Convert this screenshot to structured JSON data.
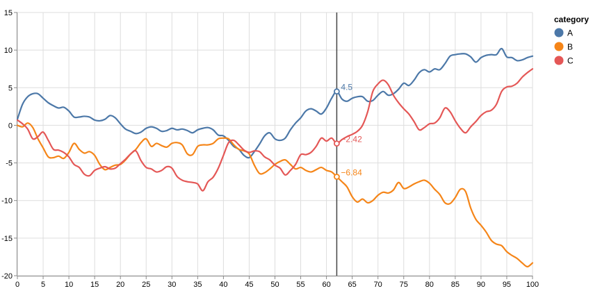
{
  "chart_data": {
    "type": "line",
    "legend": {
      "title": "category",
      "position": "right-top"
    },
    "xlim": [
      0,
      100
    ],
    "ylim": [
      -20,
      15
    ],
    "x_ticks": [
      0,
      5,
      10,
      15,
      20,
      25,
      30,
      35,
      40,
      45,
      50,
      55,
      60,
      65,
      70,
      75,
      80,
      85,
      90,
      95,
      100
    ],
    "y_ticks": [
      -20,
      -15,
      -10,
      -5,
      0,
      5,
      10,
      15
    ],
    "grid": true,
    "rule_x": 62,
    "series": [
      {
        "name": "A",
        "color": "#4c78a8",
        "points": [
          [
            0,
            0.8
          ],
          [
            1,
            2.8
          ],
          [
            2,
            3.8
          ],
          [
            3,
            4.2
          ],
          [
            4,
            4.2
          ],
          [
            5,
            3.6
          ],
          [
            6,
            3.0
          ],
          [
            7,
            2.6
          ],
          [
            8,
            2.3
          ],
          [
            9,
            2.4
          ],
          [
            10,
            1.9
          ],
          [
            11,
            1.1
          ],
          [
            12,
            1.1
          ],
          [
            13,
            1.2
          ],
          [
            14,
            1.1
          ],
          [
            15,
            0.7
          ],
          [
            16,
            0.6
          ],
          [
            17,
            0.8
          ],
          [
            18,
            1.3
          ],
          [
            19,
            1.0
          ],
          [
            20,
            0.2
          ],
          [
            21,
            -0.5
          ],
          [
            22,
            -0.8
          ],
          [
            23,
            -1.1
          ],
          [
            24,
            -0.9
          ],
          [
            25,
            -0.4
          ],
          [
            26,
            -0.2
          ],
          [
            27,
            -0.4
          ],
          [
            28,
            -0.8
          ],
          [
            29,
            -0.7
          ],
          [
            30,
            -0.4
          ],
          [
            31,
            -0.6
          ],
          [
            32,
            -0.5
          ],
          [
            33,
            -0.7
          ],
          [
            34,
            -1.0
          ],
          [
            35,
            -0.6
          ],
          [
            36,
            -0.4
          ],
          [
            37,
            -0.3
          ],
          [
            38,
            -0.6
          ],
          [
            39,
            -1.3
          ],
          [
            40,
            -1.4
          ],
          [
            41,
            -2.0
          ],
          [
            42,
            -2.8
          ],
          [
            43,
            -3.2
          ],
          [
            44,
            -4.0
          ],
          [
            45,
            -4.3
          ],
          [
            46,
            -3.5
          ],
          [
            47,
            -2.5
          ],
          [
            48,
            -1.4
          ],
          [
            49,
            -1.0
          ],
          [
            50,
            -1.8
          ],
          [
            51,
            -2.0
          ],
          [
            52,
            -1.7
          ],
          [
            53,
            -0.6
          ],
          [
            54,
            0.3
          ],
          [
            55,
            1.0
          ],
          [
            56,
            1.9
          ],
          [
            57,
            2.2
          ],
          [
            58,
            1.9
          ],
          [
            59,
            1.5
          ],
          [
            60,
            2.3
          ],
          [
            61,
            3.6
          ],
          [
            62,
            4.5
          ],
          [
            63,
            3.5
          ],
          [
            64,
            3.2
          ],
          [
            65,
            3.6
          ],
          [
            66,
            3.8
          ],
          [
            67,
            3.8
          ],
          [
            68,
            3.2
          ],
          [
            69,
            3.3
          ],
          [
            70,
            4.0
          ],
          [
            71,
            4.5
          ],
          [
            72,
            4.0
          ],
          [
            73,
            4.2
          ],
          [
            74,
            4.8
          ],
          [
            75,
            5.6
          ],
          [
            76,
            5.3
          ],
          [
            77,
            6.0
          ],
          [
            78,
            7.0
          ],
          [
            79,
            7.4
          ],
          [
            80,
            7.1
          ],
          [
            81,
            7.5
          ],
          [
            82,
            7.4
          ],
          [
            83,
            8.2
          ],
          [
            84,
            9.2
          ],
          [
            85,
            9.4
          ],
          [
            86,
            9.5
          ],
          [
            87,
            9.5
          ],
          [
            88,
            9.1
          ],
          [
            89,
            8.4
          ],
          [
            90,
            9.0
          ],
          [
            91,
            9.3
          ],
          [
            92,
            9.4
          ],
          [
            93,
            9.4
          ],
          [
            94,
            10.2
          ],
          [
            95,
            9.1
          ],
          [
            96,
            9.0
          ],
          [
            97,
            8.6
          ],
          [
            98,
            8.7
          ],
          [
            99,
            9.0
          ],
          [
            100,
            9.2
          ]
        ]
      },
      {
        "name": "B",
        "color": "#f58518",
        "points": [
          [
            0,
            0.0
          ],
          [
            1,
            -0.2
          ],
          [
            2,
            0.3
          ],
          [
            3,
            -0.3
          ],
          [
            4,
            -1.8
          ],
          [
            5,
            -3.0
          ],
          [
            6,
            -4.2
          ],
          [
            7,
            -4.3
          ],
          [
            8,
            -4.1
          ],
          [
            9,
            -4.4
          ],
          [
            10,
            -3.6
          ],
          [
            11,
            -2.4
          ],
          [
            12,
            -3.2
          ],
          [
            13,
            -3.7
          ],
          [
            14,
            -3.5
          ],
          [
            15,
            -4.0
          ],
          [
            16,
            -5.2
          ],
          [
            17,
            -5.9
          ],
          [
            18,
            -5.6
          ],
          [
            19,
            -5.3
          ],
          [
            20,
            -5.2
          ],
          [
            21,
            -4.6
          ],
          [
            22,
            -3.8
          ],
          [
            23,
            -3.2
          ],
          [
            24,
            -2.3
          ],
          [
            25,
            -1.8
          ],
          [
            26,
            -2.8
          ],
          [
            27,
            -2.4
          ],
          [
            28,
            -2.7
          ],
          [
            29,
            -2.9
          ],
          [
            30,
            -2.4
          ],
          [
            31,
            -2.3
          ],
          [
            32,
            -2.6
          ],
          [
            33,
            -3.8
          ],
          [
            34,
            -3.9
          ],
          [
            35,
            -2.8
          ],
          [
            36,
            -2.6
          ],
          [
            37,
            -2.6
          ],
          [
            38,
            -2.4
          ],
          [
            39,
            -1.8
          ],
          [
            40,
            -1.7
          ],
          [
            41,
            -1.8
          ],
          [
            42,
            -2.6
          ],
          [
            43,
            -3.2
          ],
          [
            44,
            -3.4
          ],
          [
            45,
            -3.8
          ],
          [
            46,
            -5.3
          ],
          [
            47,
            -6.4
          ],
          [
            48,
            -6.3
          ],
          [
            49,
            -5.8
          ],
          [
            50,
            -5.2
          ],
          [
            51,
            -4.8
          ],
          [
            52,
            -4.6
          ],
          [
            53,
            -5.2
          ],
          [
            54,
            -5.8
          ],
          [
            55,
            -5.6
          ],
          [
            56,
            -6.0
          ],
          [
            57,
            -6.2
          ],
          [
            58,
            -5.9
          ],
          [
            59,
            -5.6
          ],
          [
            60,
            -6.0
          ],
          [
            61,
            -6.2
          ],
          [
            62,
            -6.84
          ],
          [
            63,
            -7.5
          ],
          [
            64,
            -8.2
          ],
          [
            65,
            -9.5
          ],
          [
            66,
            -10.2
          ],
          [
            67,
            -9.8
          ],
          [
            68,
            -10.3
          ],
          [
            69,
            -10.0
          ],
          [
            70,
            -9.3
          ],
          [
            71,
            -8.9
          ],
          [
            72,
            -9.0
          ],
          [
            73,
            -8.6
          ],
          [
            74,
            -7.6
          ],
          [
            75,
            -8.4
          ],
          [
            76,
            -8.2
          ],
          [
            77,
            -7.8
          ],
          [
            78,
            -7.5
          ],
          [
            79,
            -7.3
          ],
          [
            80,
            -7.7
          ],
          [
            81,
            -8.5
          ],
          [
            82,
            -9.2
          ],
          [
            83,
            -10.3
          ],
          [
            84,
            -10.4
          ],
          [
            85,
            -9.6
          ],
          [
            86,
            -8.5
          ],
          [
            87,
            -8.8
          ],
          [
            88,
            -11.0
          ],
          [
            89,
            -12.5
          ],
          [
            90,
            -13.3
          ],
          [
            91,
            -14.2
          ],
          [
            92,
            -15.3
          ],
          [
            93,
            -15.8
          ],
          [
            94,
            -16.0
          ],
          [
            95,
            -16.8
          ],
          [
            96,
            -17.3
          ],
          [
            97,
            -17.7
          ],
          [
            98,
            -18.3
          ],
          [
            99,
            -18.8
          ],
          [
            100,
            -18.3
          ]
        ]
      },
      {
        "name": "C",
        "color": "#e45756",
        "points": [
          [
            0,
            0.7
          ],
          [
            1,
            0.2
          ],
          [
            2,
            -0.5
          ],
          [
            3,
            -1.8
          ],
          [
            4,
            -1.5
          ],
          [
            5,
            -0.9
          ],
          [
            6,
            -2.0
          ],
          [
            7,
            -3.2
          ],
          [
            8,
            -3.3
          ],
          [
            9,
            -3.6
          ],
          [
            10,
            -4.2
          ],
          [
            11,
            -5.2
          ],
          [
            12,
            -5.6
          ],
          [
            13,
            -6.5
          ],
          [
            14,
            -6.7
          ],
          [
            15,
            -6.0
          ],
          [
            16,
            -5.7
          ],
          [
            17,
            -5.5
          ],
          [
            18,
            -5.8
          ],
          [
            19,
            -5.7
          ],
          [
            20,
            -5.1
          ],
          [
            21,
            -4.5
          ],
          [
            22,
            -3.8
          ],
          [
            23,
            -3.4
          ],
          [
            24,
            -4.7
          ],
          [
            25,
            -5.6
          ],
          [
            26,
            -5.8
          ],
          [
            27,
            -6.2
          ],
          [
            28,
            -6.0
          ],
          [
            29,
            -5.5
          ],
          [
            30,
            -5.7
          ],
          [
            31,
            -6.8
          ],
          [
            32,
            -7.3
          ],
          [
            33,
            -7.5
          ],
          [
            34,
            -7.6
          ],
          [
            35,
            -7.8
          ],
          [
            36,
            -8.7
          ],
          [
            37,
            -7.5
          ],
          [
            38,
            -6.9
          ],
          [
            39,
            -5.7
          ],
          [
            40,
            -4.0
          ],
          [
            41,
            -2.3
          ],
          [
            42,
            -2.0
          ],
          [
            43,
            -2.6
          ],
          [
            44,
            -3.3
          ],
          [
            45,
            -3.6
          ],
          [
            46,
            -3.4
          ],
          [
            47,
            -3.5
          ],
          [
            48,
            -4.2
          ],
          [
            49,
            -4.6
          ],
          [
            50,
            -5.3
          ],
          [
            51,
            -5.7
          ],
          [
            52,
            -6.6
          ],
          [
            53,
            -6.0
          ],
          [
            54,
            -5.2
          ],
          [
            55,
            -3.9
          ],
          [
            56,
            -3.9
          ],
          [
            57,
            -3.6
          ],
          [
            58,
            -2.8
          ],
          [
            59,
            -1.7
          ],
          [
            60,
            -2.1
          ],
          [
            61,
            -1.7
          ],
          [
            62,
            -2.42
          ],
          [
            63,
            -1.9
          ],
          [
            64,
            -1.5
          ],
          [
            65,
            -1.2
          ],
          [
            66,
            -0.8
          ],
          [
            67,
            0.0
          ],
          [
            68,
            1.8
          ],
          [
            69,
            4.5
          ],
          [
            70,
            5.5
          ],
          [
            71,
            6.0
          ],
          [
            72,
            5.4
          ],
          [
            73,
            4.0
          ],
          [
            74,
            3.0
          ],
          [
            75,
            2.2
          ],
          [
            76,
            1.5
          ],
          [
            77,
            0.5
          ],
          [
            78,
            -0.6
          ],
          [
            79,
            -0.3
          ],
          [
            80,
            0.2
          ],
          [
            81,
            0.3
          ],
          [
            82,
            1.0
          ],
          [
            83,
            2.3
          ],
          [
            84,
            1.8
          ],
          [
            85,
            0.6
          ],
          [
            86,
            -0.4
          ],
          [
            87,
            -1.0
          ],
          [
            88,
            -0.2
          ],
          [
            89,
            0.5
          ],
          [
            90,
            1.3
          ],
          [
            91,
            1.8
          ],
          [
            92,
            2.0
          ],
          [
            93,
            2.8
          ],
          [
            94,
            4.5
          ],
          [
            95,
            5.1
          ],
          [
            96,
            5.2
          ],
          [
            97,
            5.6
          ],
          [
            98,
            6.4
          ],
          [
            99,
            7.0
          ],
          [
            100,
            7.5
          ]
        ]
      }
    ],
    "point_labels": [
      {
        "series": "A",
        "x": 62,
        "y": 4.5,
        "text": "4.5"
      },
      {
        "series": "C",
        "x": 62,
        "y": -2.42,
        "text": "−2.42"
      },
      {
        "series": "B",
        "x": 62,
        "y": -6.84,
        "text": "−6.84"
      }
    ]
  }
}
